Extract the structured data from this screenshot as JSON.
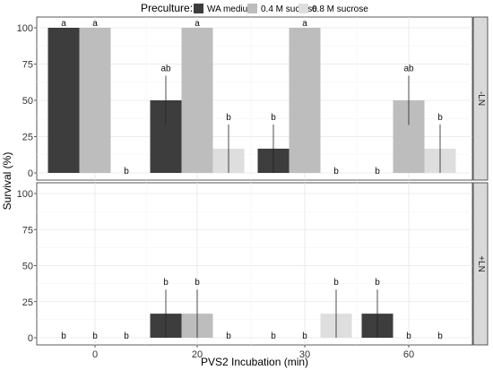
{
  "chart_data": {
    "type": "bar",
    "xlabel": "PVS2 Incubation (min)",
    "ylabel": "Survival (%)",
    "ylim": [
      0,
      100
    ],
    "yticks": [
      "0",
      "25",
      "50",
      "75",
      "100"
    ],
    "categories": [
      "0",
      "20",
      "30",
      "60"
    ],
    "grid": true,
    "legend": {
      "title": "Preculture:",
      "position": "top",
      "entries": [
        "WA medium",
        "0.4 M sucrose",
        "0.8 M sucrose"
      ]
    },
    "colors": [
      "#3d3d3d",
      "#bdbdbd",
      "#dedede"
    ],
    "facets": [
      {
        "label": "-LN",
        "series": [
          {
            "name": "WA medium",
            "values": [
              100,
              50,
              16.7,
              0
            ],
            "err": [
              0,
              17,
              16.7,
              0
            ],
            "letters": [
              "a",
              "ab",
              "b",
              "b"
            ]
          },
          {
            "name": "0.4 M sucrose",
            "values": [
              100,
              100,
              100,
              50
            ],
            "err": [
              0,
              0,
              0,
              17
            ],
            "letters": [
              "a",
              "a",
              "a",
              "ab"
            ]
          },
          {
            "name": "0.8 M sucrose",
            "values": [
              0,
              16.7,
              0,
              16.7
            ],
            "err": [
              0,
              16.7,
              0,
              16.7
            ],
            "letters": [
              "b",
              "b",
              "b",
              "b"
            ]
          }
        ]
      },
      {
        "label": "+LN",
        "series": [
          {
            "name": "WA medium",
            "values": [
              0,
              16.7,
              0,
              16.7
            ],
            "err": [
              0,
              16.7,
              0,
              16.7
            ],
            "letters": [
              "b",
              "b",
              "b",
              "b"
            ]
          },
          {
            "name": "0.4 M sucrose",
            "values": [
              0,
              16.7,
              0,
              0
            ],
            "err": [
              0,
              16.7,
              0,
              0
            ],
            "letters": [
              "b",
              "b",
              "b",
              "b"
            ]
          },
          {
            "name": "0.8 M sucrose",
            "values": [
              0,
              0,
              16.7,
              0
            ],
            "err": [
              0,
              0,
              16.7,
              0
            ],
            "letters": [
              "b",
              "b",
              "b",
              "b"
            ]
          }
        ]
      }
    ]
  }
}
